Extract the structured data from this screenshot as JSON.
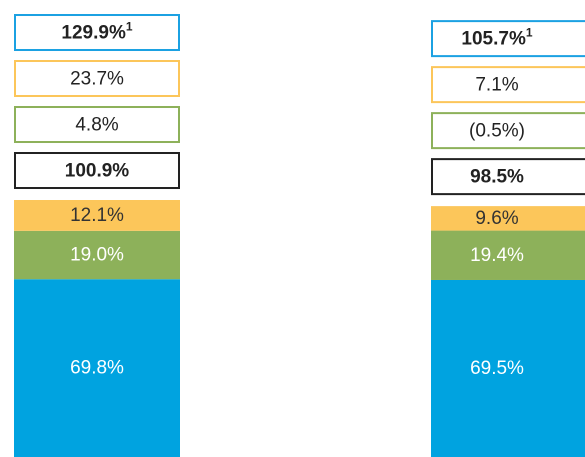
{
  "chart_data": {
    "type": "stacked_bar",
    "categories": [
      null,
      null
    ],
    "series": [
      {
        "color": "#00a3e0",
        "text_color": "#ffffff",
        "values": [
          69.8,
          69.5
        ],
        "value_labels": [
          "69.8%",
          "69.5%"
        ]
      },
      {
        "color": "#8db15a",
        "text_color": "#ffffff",
        "values": [
          19.0,
          19.4
        ],
        "value_labels": [
          "19.0%",
          "19.4%"
        ]
      },
      {
        "color": "#fcc65a",
        "text_color": "#333333",
        "values": [
          12.1,
          9.6
        ],
        "value_labels": [
          "12.1%",
          "9.6%"
        ]
      }
    ],
    "boxes": [
      {
        "color": "#222222",
        "bold": true,
        "values": [
          100.9,
          98.5
        ],
        "value_labels": [
          "100.9%",
          "98.5%"
        ]
      },
      {
        "color": "#8db15a",
        "bold": false,
        "values": [
          4.8,
          -0.5
        ],
        "value_labels": [
          "4.8%",
          "(0.5%)"
        ]
      },
      {
        "color": "#fcc65a",
        "bold": false,
        "values": [
          23.7,
          7.1
        ],
        "value_labels": [
          "23.7%",
          "7.1%"
        ]
      },
      {
        "color": "#1ba1e2",
        "bold": true,
        "values": [
          129.9,
          105.7
        ],
        "value_labels": [
          "129.9%",
          "105.7%"
        ],
        "footnote": "1"
      }
    ]
  }
}
